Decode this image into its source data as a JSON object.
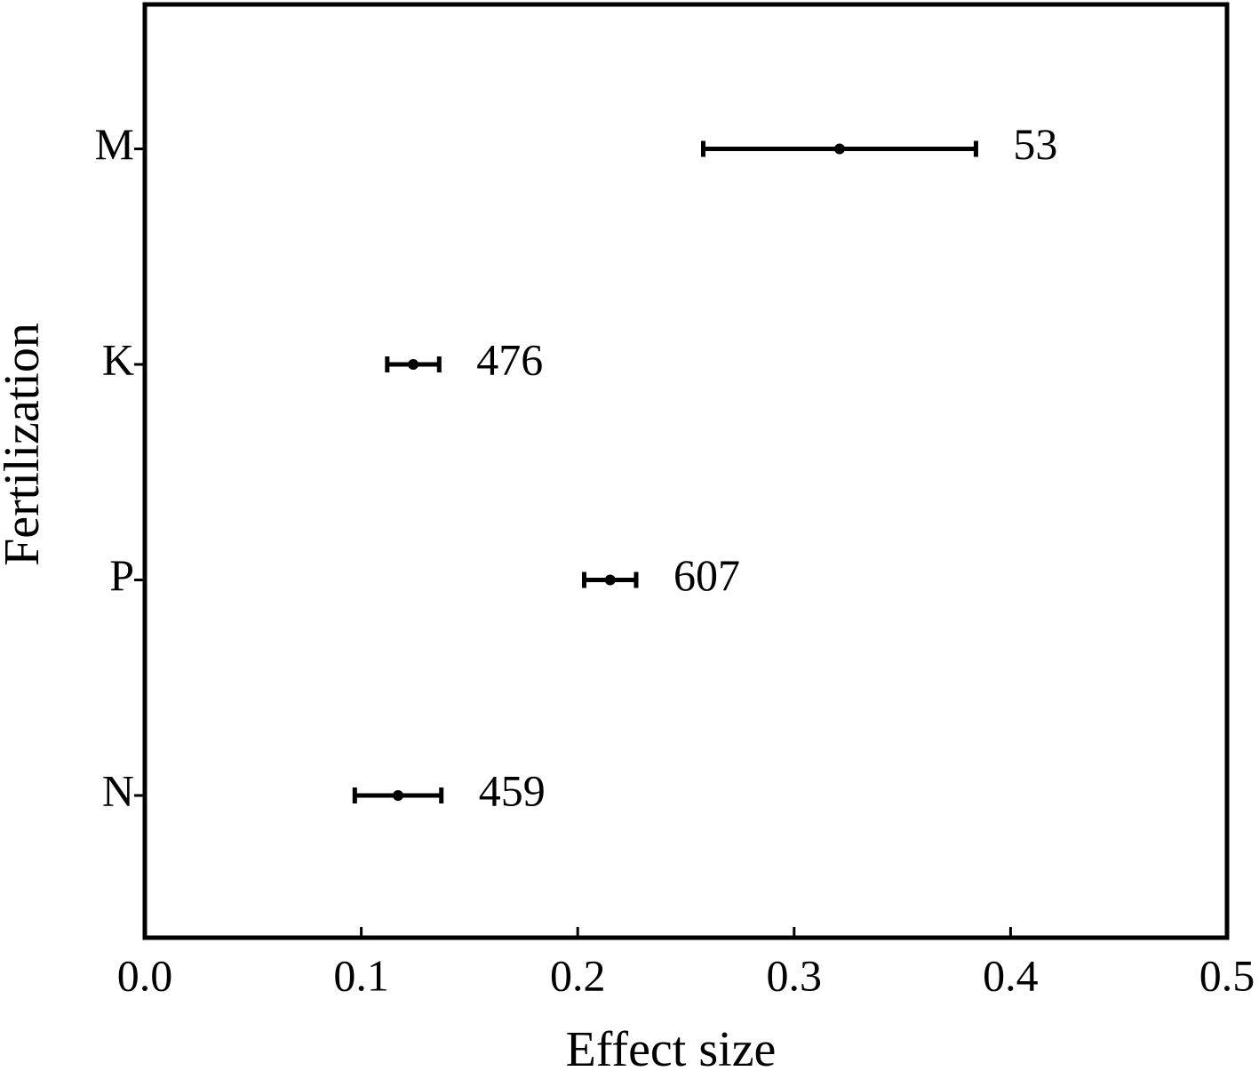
{
  "chart_data": {
    "type": "errorbar-h",
    "x_label": "Effect size",
    "y_label": "Fertilization",
    "categories": [
      "N",
      "P",
      "K",
      "M"
    ],
    "values": [
      0.117,
      0.215,
      0.124,
      0.321
    ],
    "errors": [
      0.02,
      0.012,
      0.012,
      0.063
    ],
    "sample_sizes": [
      459,
      607,
      476,
      53
    ],
    "color": "#000000",
    "xlim": [
      0,
      0.5
    ],
    "xticks": [
      {
        "value": 0,
        "label": "0.0"
      },
      0.1,
      0.2,
      0.3,
      0.4,
      0.5
    ]
  }
}
